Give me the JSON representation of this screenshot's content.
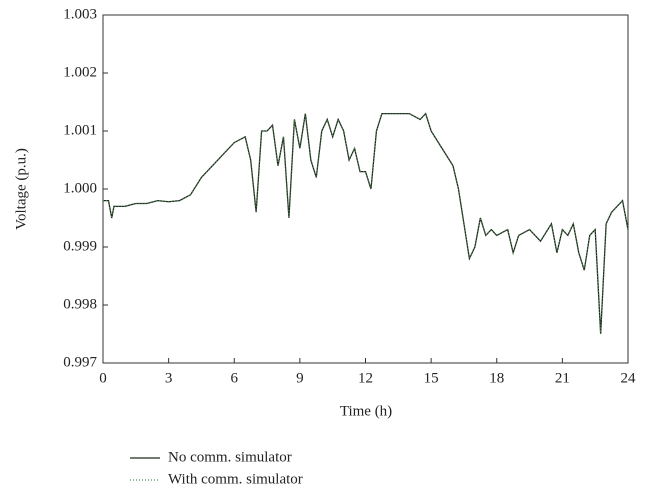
{
  "chart_data": {
    "type": "line",
    "x_label": "Time (h)",
    "y_label": "Voltage (p.u.)",
    "x": [
      0,
      0.25,
      0.4,
      0.5,
      1,
      1.5,
      2,
      2.5,
      3,
      3.5,
      4,
      4.5,
      5,
      5.5,
      6,
      6.5,
      6.75,
      7,
      7.25,
      7.5,
      7.75,
      8,
      8.25,
      8.5,
      8.75,
      9,
      9.25,
      9.5,
      9.75,
      10,
      10.25,
      10.5,
      10.75,
      11,
      11.25,
      11.5,
      11.75,
      12,
      12.25,
      12.5,
      12.75,
      13,
      13.5,
      14,
      14.5,
      14.75,
      15,
      15.5,
      16,
      16.25,
      16.5,
      16.75,
      17,
      17.25,
      17.5,
      17.75,
      18,
      18.5,
      18.75,
      19,
      19.5,
      20,
      20.5,
      20.75,
      21,
      21.25,
      21.5,
      21.75,
      22,
      22.25,
      22.5,
      22.75,
      23,
      23.25,
      23.5,
      23.75,
      24
    ],
    "series": [
      {
        "name": "No comm. simulator",
        "color": "#1e2a1e",
        "style": "solid",
        "values": [
          0.9998,
          0.9998,
          0.9995,
          0.9997,
          0.9997,
          0.99975,
          0.99975,
          0.9998,
          0.99978,
          0.9998,
          0.9999,
          1.0002,
          1.0004,
          1.0006,
          1.0008,
          1.0009,
          1.0005,
          0.9996,
          1.001,
          1.001,
          1.0011,
          1.0004,
          1.0009,
          0.9995,
          1.0012,
          1.0007,
          1.0013,
          1.0005,
          1.0002,
          1.001,
          1.0012,
          1.0009,
          1.0012,
          1.001,
          1.0005,
          1.0007,
          1.0003,
          1.0003,
          1.0,
          1.001,
          1.0013,
          1.0013,
          1.0013,
          1.0013,
          1.0012,
          1.0013,
          1.001,
          1.0007,
          1.0004,
          1.0,
          0.9994,
          0.9988,
          0.999,
          0.9995,
          0.9992,
          0.9993,
          0.9992,
          0.9993,
          0.9989,
          0.9992,
          0.9993,
          0.9991,
          0.9994,
          0.9989,
          0.9993,
          0.9992,
          0.9994,
          0.9989,
          0.9986,
          0.9992,
          0.9993,
          0.9975,
          0.9994,
          0.9996,
          0.9997,
          0.9998,
          0.9993
        ]
      },
      {
        "name": "With comm. simulator",
        "color": "#4f8a4f",
        "style": "dotted",
        "values": [
          0.9998,
          0.9998,
          0.9995,
          0.9997,
          0.9997,
          0.99975,
          0.99975,
          0.9998,
          0.99978,
          0.9998,
          0.9999,
          1.0002,
          1.0004,
          1.0006,
          1.0008,
          1.0009,
          1.0005,
          0.9996,
          1.001,
          1.001,
          1.0011,
          1.0004,
          1.0009,
          0.9995,
          1.0012,
          1.0007,
          1.0013,
          1.0005,
          1.0002,
          1.001,
          1.0012,
          1.0009,
          1.0012,
          1.001,
          1.0005,
          1.0007,
          1.0003,
          1.0003,
          1.0,
          1.001,
          1.0013,
          1.0013,
          1.0013,
          1.0013,
          1.0012,
          1.0013,
          1.001,
          1.0007,
          1.0004,
          1.0,
          0.9994,
          0.9988,
          0.999,
          0.9995,
          0.9992,
          0.9993,
          0.9992,
          0.9993,
          0.9989,
          0.9992,
          0.9993,
          0.9991,
          0.9994,
          0.9989,
          0.9993,
          0.9992,
          0.9994,
          0.9989,
          0.9986,
          0.9992,
          0.9993,
          0.9975,
          0.9994,
          0.9996,
          0.9997,
          0.9998,
          0.9993
        ]
      }
    ],
    "xlim": [
      0,
      24
    ],
    "xticks": [
      0,
      3,
      6,
      9,
      12,
      15,
      18,
      21,
      24
    ],
    "ylim": [
      0.997,
      1.003
    ],
    "yticks": [
      0.997,
      0.998,
      0.999,
      {
        "value": 1,
        "label": "1.000"
      },
      1.001,
      1.002,
      1.003
    ],
    "grid": false,
    "legend": "bottom-left"
  }
}
